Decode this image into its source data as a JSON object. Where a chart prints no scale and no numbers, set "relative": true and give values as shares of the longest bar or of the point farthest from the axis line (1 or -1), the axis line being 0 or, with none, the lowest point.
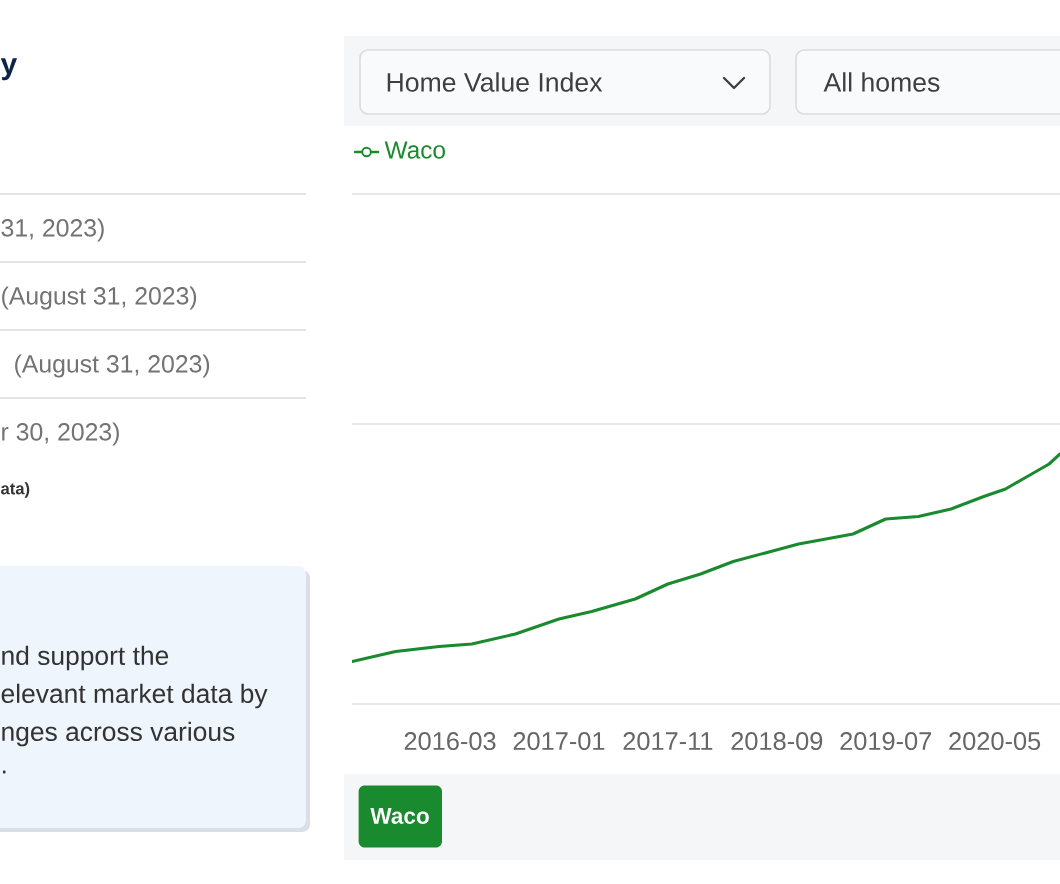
{
  "chart_data": {
    "type": "line",
    "x": [
      "2015-06",
      "2015-10",
      "2016-02",
      "2016-05",
      "2016-09",
      "2017-01",
      "2017-04",
      "2017-08",
      "2017-11",
      "2018-02",
      "2018-05",
      "2018-11",
      "2019-04",
      "2019-07",
      "2019-10",
      "2020-01",
      "2020-04",
      "2020-06",
      "2020-08",
      "2020-10",
      "2020-11"
    ],
    "series": [
      {
        "name": "Waco",
        "color": "#1a8a2e",
        "values": [
          0.17,
          0.21,
          0.23,
          0.24,
          0.28,
          0.34,
          0.37,
          0.42,
          0.48,
          0.52,
          0.57,
          0.64,
          0.68,
          0.74,
          0.75,
          0.78,
          0.83,
          0.86,
          0.91,
          0.96,
          1
        ]
      }
    ],
    "relative": true,
    "xlim": [
      "2015-06",
      "2020-11"
    ],
    "xticks": [
      "2016-03",
      "2017-01",
      "2017-11",
      "2018-09",
      "2019-07",
      "2020-05"
    ],
    "legend": "top left",
    "annotations": [
      "y",
      "31, 2023)",
      "(August 31, 2023)",
      "(August 31, 2023)",
      "r 30, 2023)",
      "ata)",
      "nd support the",
      "elevant market data by",
      "nges across various",
      ".",
      "Home Value Index",
      "All homes",
      "Waco"
    ]
  }
}
